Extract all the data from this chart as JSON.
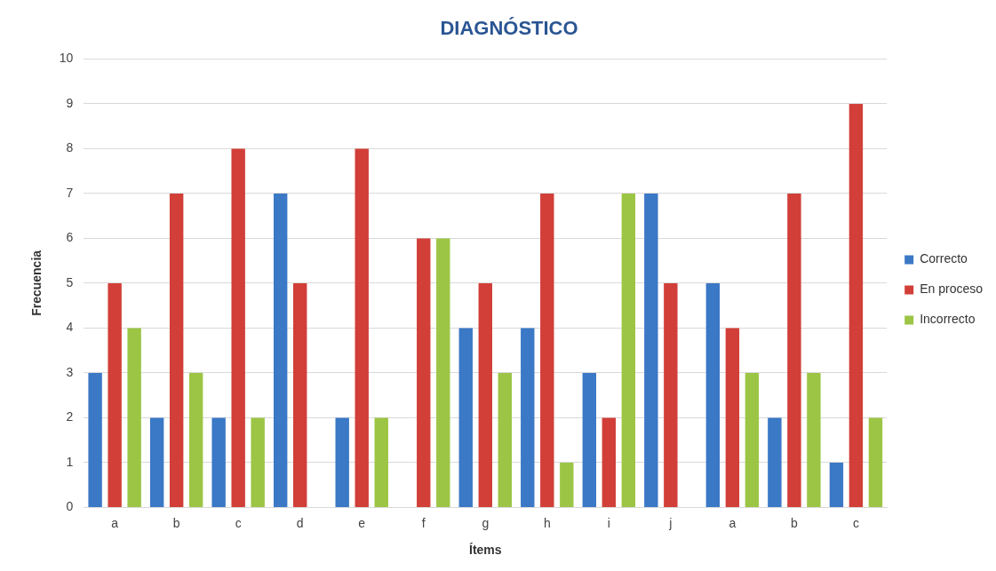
{
  "chart_data": {
    "type": "bar",
    "title": "DIAGNÓSTICO",
    "xlabel": "Ítems",
    "ylabel": "Frecuencia",
    "categories": [
      "a",
      "b",
      "c",
      "d",
      "e",
      "f",
      "g",
      "h",
      "i",
      "j",
      "a",
      "b",
      "c"
    ],
    "series": [
      {
        "name": "Correcto",
        "color": "#3b78c6",
        "values": [
          3,
          2,
          2,
          7,
          2,
          0,
          4,
          4,
          3,
          7,
          5,
          2,
          1
        ]
      },
      {
        "name": "En proceso",
        "color": "#d13f38",
        "values": [
          5,
          7,
          8,
          5,
          8,
          6,
          5,
          7,
          2,
          5,
          4,
          7,
          9
        ]
      },
      {
        "name": "Incorrecto",
        "color": "#9cc545",
        "values": [
          4,
          3,
          2,
          0,
          2,
          6,
          3,
          1,
          7,
          0,
          3,
          3,
          2
        ]
      }
    ],
    "ylim": [
      0,
      10
    ],
    "yticks": [
      0,
      1,
      2,
      3,
      4,
      5,
      6,
      7,
      8,
      9,
      10
    ],
    "grid": "y",
    "legend": "right"
  }
}
